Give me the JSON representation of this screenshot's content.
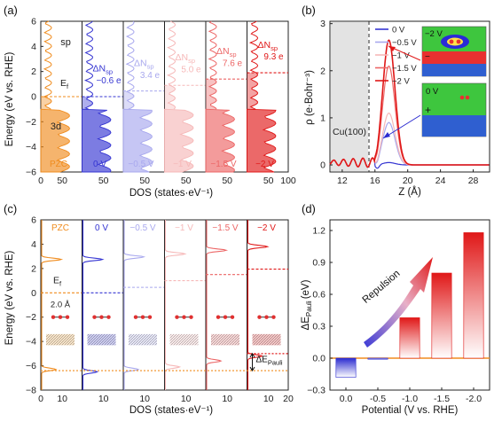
{
  "panels": {
    "a": "(a)",
    "b": "(b)",
    "c": "(c)",
    "d": "(d)"
  },
  "colors": {
    "orange": "#f08c1e",
    "blue": "#2b2bd0",
    "red": "#e01818",
    "series": [
      "#f08c1e",
      "#3535d2",
      "#a8a8ee",
      "#f6b8b8",
      "#ec6666",
      "#e01818"
    ]
  },
  "chart_data": [
    {
      "id": "a",
      "type": "area",
      "ylabel": "Energy (eV vs. RHE)",
      "xlabel": "DOS (states·eV⁻¹)",
      "ylim": [
        -6,
        6
      ],
      "yticks": [
        "−6",
        "−4",
        "−2",
        "0",
        "2",
        "4",
        "6"
      ],
      "xticks": [
        "0",
        "50",
        "50",
        "50",
        "50",
        "50",
        "50",
        "100"
      ],
      "columns": [
        {
          "potential": "PZC",
          "ef": 0.0,
          "sd_label": "3d",
          "sp_label": "sp",
          "ef_label": "E",
          "ef_sub": "f"
        },
        {
          "potential": "0 V",
          "ef": 0.0,
          "dn_label": "ΔN",
          "dn_sub": "sp",
          "dn_value": "−0.6 e"
        },
        {
          "potential": "−0.5 V",
          "ef": 0.45,
          "dn_label": "ΔN",
          "dn_sub": "sp",
          "dn_value": "3.4 e"
        },
        {
          "potential": "−1 V",
          "ef": 0.9,
          "dn_label": "ΔN",
          "dn_sub": "sp",
          "dn_value": "5.0 e"
        },
        {
          "potential": "−1.5 V",
          "ef": 1.4,
          "dn_label": "ΔN",
          "dn_sub": "sp",
          "dn_value": "7.6 e"
        },
        {
          "potential": "−2 V",
          "ef": 1.9,
          "dn_label": "ΔN",
          "dn_sub": "sp",
          "dn_value": "9.3 e"
        }
      ]
    },
    {
      "id": "b",
      "type": "line",
      "xlabel": "Z (Å)",
      "ylabel": "ρ (e·Bohr⁻³)",
      "xlim": [
        10.5,
        30
      ],
      "ylim": [
        -0.15,
        3.05
      ],
      "xticks": [
        12,
        16,
        20,
        24,
        28
      ],
      "yticks": [
        0,
        1,
        2,
        3
      ],
      "surface_label": "Cu(100)",
      "surface_z": 16,
      "inset_top_label": "−2 V",
      "inset_bottom_label": "0 V",
      "series": [
        {
          "name": "0 V",
          "peak": 0.05
        },
        {
          "name": "−0.5 V",
          "peak": 0.9
        },
        {
          "name": "−1 V",
          "peak": 1.1
        },
        {
          "name": "−1.5 V",
          "peak": 2.1
        },
        {
          "name": "−2 V",
          "peak": 2.65
        }
      ]
    },
    {
      "id": "c",
      "type": "area",
      "ylabel": "Energy (eV vs. RHE)",
      "xlabel": "DOS (states·eV⁻¹)",
      "ylim": [
        -8,
        6
      ],
      "yticks": [
        "−8",
        "−6",
        "−4",
        "−2",
        "0",
        "2",
        "4",
        "6"
      ],
      "xticks": [
        "0",
        "10",
        "10",
        "10",
        "10",
        "10",
        "10",
        "20"
      ],
      "distance_label": "2.0 Å",
      "delta_label": "ΔE",
      "delta_sub": "Pauli",
      "ef_label": "E",
      "ef_sub": "f",
      "columns": [
        {
          "potential": "PZC",
          "ef": 0.0,
          "peak_hi": 2.75,
          "peak_lo": -6.3
        },
        {
          "potential": "0 V",
          "ef": 0.0,
          "peak_hi": 2.75,
          "peak_lo": -6.5
        },
        {
          "potential": "−0.5 V",
          "ef": 0.45,
          "peak_hi": 2.95,
          "peak_lo": -6.3
        },
        {
          "potential": "−1 V",
          "ef": 1.0,
          "peak_hi": 3.2,
          "peak_lo": -6.1
        },
        {
          "potential": "−1.5 V",
          "ef": 1.5,
          "peak_hi": 3.5,
          "peak_lo": -5.6
        },
        {
          "potential": "−2 V",
          "ef": 1.95,
          "peak_hi": 3.8,
          "peak_lo": -5.2
        }
      ]
    },
    {
      "id": "d",
      "type": "bar",
      "xlabel": "Potential (V vs. RHE)",
      "ylabel": "ΔE",
      "ylabel_sub": "Pauli",
      "ylabel_unit": "(eV)",
      "categories": [
        "0.0",
        "-0.5",
        "-1.0",
        "-1.5",
        "-2.0"
      ],
      "values": [
        -0.18,
        -0.01,
        0.38,
        0.8,
        1.18
      ],
      "ylim": [
        -0.3,
        1.3
      ],
      "yticks": [
        "−0.3",
        "0.0",
        "0.3",
        "0.6",
        "0.9",
        "1.2"
      ],
      "annotation": "Repulsion"
    }
  ]
}
